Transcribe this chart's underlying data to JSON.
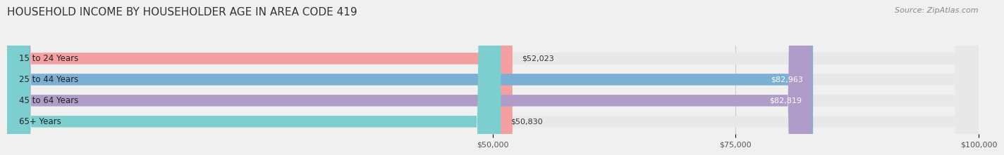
{
  "title": "HOUSEHOLD INCOME BY HOUSEHOLDER AGE IN AREA CODE 419",
  "source": "Source: ZipAtlas.com",
  "categories": [
    "15 to 24 Years",
    "25 to 44 Years",
    "45 to 64 Years",
    "65+ Years"
  ],
  "values": [
    52023,
    82963,
    82819,
    50830
  ],
  "bar_colors": [
    "#f4a0a0",
    "#7bafd4",
    "#b09cc8",
    "#7dcfcf"
  ],
  "label_colors": [
    "#333333",
    "#ffffff",
    "#ffffff",
    "#333333"
  ],
  "xmin": 0,
  "xmax": 100000,
  "xticks": [
    50000,
    75000,
    100000
  ],
  "xtick_labels": [
    "$50,000",
    "$75,000",
    "$100,000"
  ],
  "background_color": "#f0f0f0",
  "bar_background_color": "#e8e8e8",
  "title_fontsize": 11,
  "source_fontsize": 8,
  "bar_height": 0.55,
  "fig_width": 14.06,
  "fig_height": 2.33
}
